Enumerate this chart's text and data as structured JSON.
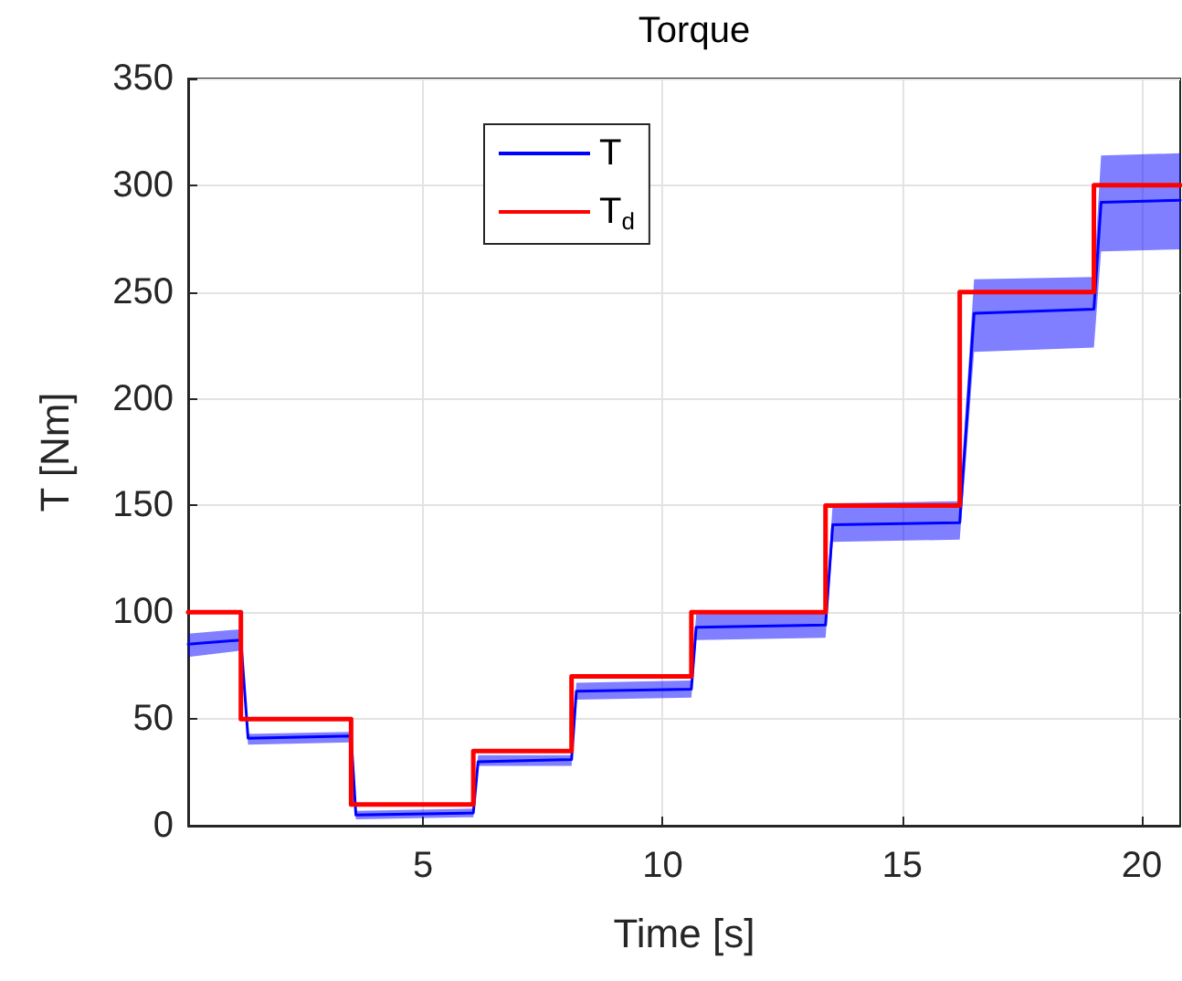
{
  "chart_data": {
    "type": "line",
    "title": "Torque",
    "xlabel": "Time [s]",
    "ylabel": "T [Nm]",
    "xlim": [
      0.1,
      20.8
    ],
    "xticks": [
      5,
      10,
      15,
      20
    ],
    "ylim": [
      0,
      350
    ],
    "yticks": [
      0,
      50,
      100,
      150,
      200,
      250,
      300,
      350
    ],
    "grid": true,
    "legend": "top left",
    "marker": "none",
    "line_style": "solid",
    "series": [
      {
        "name": "T",
        "color": "#0000ff",
        "x": [
          0.1,
          1.2,
          1.35,
          3.5,
          3.6,
          6.05,
          6.15,
          8.1,
          8.2,
          10.6,
          10.7,
          13.4,
          13.55,
          16.2,
          16.5,
          19.0,
          19.15,
          20.8
        ],
        "values": [
          85,
          87,
          41,
          42,
          5,
          6,
          30,
          31,
          63,
          64,
          93,
          94,
          141,
          142,
          240,
          242,
          292,
          293
        ],
        "lower": [
          79,
          82,
          38,
          39,
          3,
          4,
          28,
          28,
          59,
          60,
          87,
          88,
          133,
          134,
          222,
          224,
          269,
          270
        ],
        "upper": [
          90,
          92,
          43,
          44,
          7,
          8,
          33,
          33,
          67,
          68,
          99,
          100,
          151,
          152,
          256,
          257,
          314,
          315
        ]
      },
      {
        "name": "T$_{d}$",
        "type": "step",
        "color": "#ff0000",
        "x": [
          0.1,
          1.2,
          3.5,
          6.05,
          8.1,
          10.6,
          13.4,
          16.2,
          19.0,
          20.8
        ],
        "values": [
          100,
          50,
          10,
          35,
          70,
          100,
          150,
          250,
          300,
          300
        ]
      }
    ]
  }
}
